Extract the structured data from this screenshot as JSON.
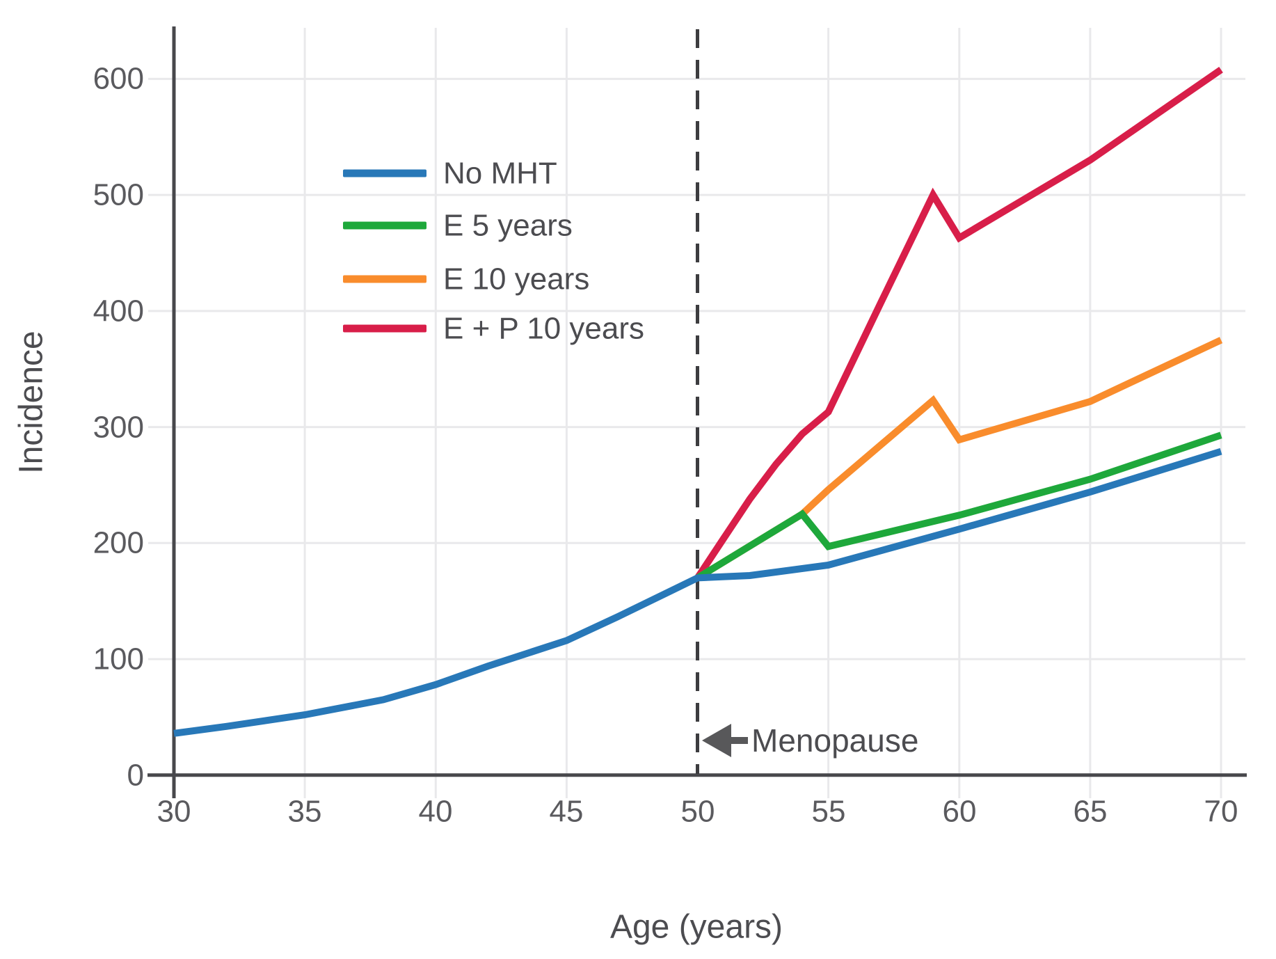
{
  "chart_data": {
    "type": "line",
    "title": "",
    "xlabel": "Age (years)",
    "ylabel": "Incidence",
    "xlim": [
      30,
      70
    ],
    "ylim": [
      0,
      650
    ],
    "x_ticks": [
      "30",
      "35",
      "40",
      "45",
      "50",
      "55",
      "60",
      "65",
      "70"
    ],
    "y_ticks": [
      "0",
      "100",
      "200",
      "300",
      "400",
      "500",
      "600"
    ],
    "grid": true,
    "legend_position": "upper left inside plot",
    "series": [
      {
        "label": "No MHT",
        "color": "#2878b8",
        "points": [
          [
            30,
            36
          ],
          [
            32,
            42
          ],
          [
            35,
            52
          ],
          [
            38,
            65
          ],
          [
            40,
            78
          ],
          [
            42,
            94
          ],
          [
            45,
            116
          ],
          [
            47,
            137
          ],
          [
            49,
            159
          ],
          [
            50,
            170
          ],
          [
            52,
            172
          ],
          [
            55,
            181
          ],
          [
            60,
            212
          ],
          [
            65,
            244
          ],
          [
            70,
            279
          ]
        ]
      },
      {
        "label": "E 5 years",
        "color": "#1ea83b",
        "points": [
          [
            50,
            170
          ],
          [
            54,
            225
          ],
          [
            55,
            197
          ],
          [
            60,
            224
          ],
          [
            65,
            255
          ],
          [
            70,
            293
          ]
        ]
      },
      {
        "label": "E 10 years",
        "color": "#f98c2c",
        "points": [
          [
            50,
            170
          ],
          [
            54,
            225
          ],
          [
            55,
            246
          ],
          [
            59,
            323
          ],
          [
            60,
            289
          ],
          [
            65,
            322
          ],
          [
            70,
            375
          ]
        ]
      },
      {
        "label": "E + P 10 years",
        "color": "#d81e49",
        "points": [
          [
            50,
            170
          ],
          [
            51,
            204
          ],
          [
            52,
            238
          ],
          [
            53,
            268
          ],
          [
            54,
            294
          ],
          [
            55,
            313
          ],
          [
            57,
            407
          ],
          [
            59,
            500
          ],
          [
            60,
            463
          ],
          [
            65,
            530
          ],
          [
            70,
            608
          ]
        ]
      }
    ],
    "annotations": {
      "menopause": {
        "label": "Menopause",
        "x": 50,
        "arrow_direction": "left"
      }
    },
    "colors": {
      "axis": "#48484c",
      "tick_label": "#5a5a5e",
      "grid": "#e9e9eb",
      "dashed_line": "#3d3d40",
      "annotation": "#58585a",
      "background": "#ffffff"
    }
  }
}
